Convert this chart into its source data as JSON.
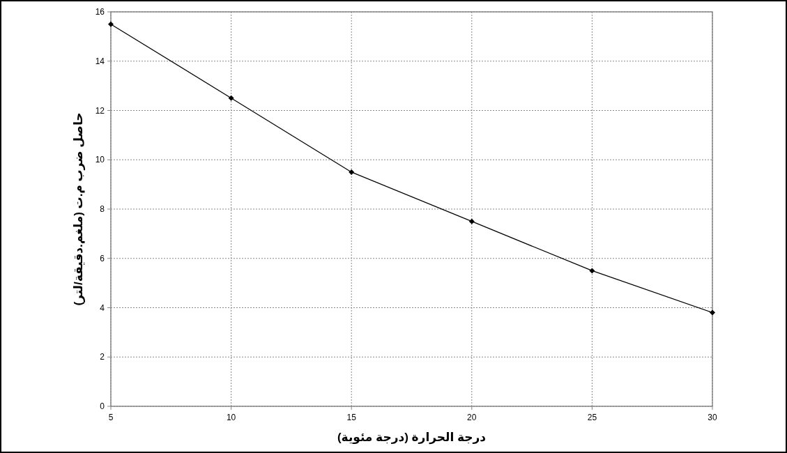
{
  "chart_data": {
    "type": "line",
    "xlabel": "درجة الحرارة (درجة مئوية)",
    "ylabel": "حاصل ضرب م.ت (ملغم.دقيقة/لتر)",
    "x": [
      5,
      10,
      15,
      20,
      25,
      30
    ],
    "series": [
      {
        "color": "#000000",
        "values": [
          15.5,
          12.5,
          9.5,
          7.5,
          5.5,
          3.8
        ]
      }
    ],
    "xlim": [
      5,
      30
    ],
    "xticks": [
      5,
      10,
      15,
      20,
      25,
      30
    ],
    "ylim": [
      0,
      16
    ],
    "yticks": [
      0,
      2,
      4,
      6,
      8,
      10,
      12,
      14,
      16
    ],
    "grid": true,
    "marker": "diamond",
    "line_style": "solid"
  }
}
